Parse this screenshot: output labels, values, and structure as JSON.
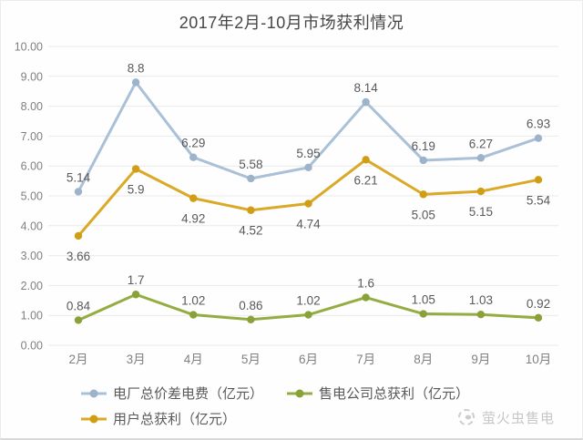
{
  "chart_data": {
    "type": "line",
    "title": "2017年2月-10月市场获利情况",
    "categories": [
      "2月",
      "3月",
      "4月",
      "5月",
      "6月",
      "7月",
      "8月",
      "9月",
      "10月"
    ],
    "series": [
      {
        "name": "电厂总价差电费（亿元）",
        "color": "#a9c0d6",
        "marker_color": "#9cb3ca",
        "values": [
          5.14,
          8.8,
          6.29,
          5.58,
          5.95,
          8.14,
          6.19,
          6.27,
          6.93
        ],
        "label_side": "above"
      },
      {
        "name": "售电公司总获利（亿元）",
        "color": "#94ad43",
        "marker_color": "#89a238",
        "values": [
          0.84,
          1.7,
          1.02,
          0.86,
          1.02,
          1.6,
          1.05,
          1.03,
          0.92
        ],
        "label_side": "above"
      },
      {
        "name": "用户总获利（亿元）",
        "color": "#dba928",
        "marker_color": "#cf9e14",
        "values": [
          3.66,
          5.9,
          4.92,
          4.52,
          4.74,
          6.21,
          5.05,
          5.15,
          5.54
        ],
        "label_side": "below"
      }
    ],
    "y_tick_labels": [
      "10.00",
      "9.00",
      "8.00",
      "7.00",
      "6.00",
      "5.00",
      "4.00",
      "3.00",
      "2.00",
      "1.00",
      "0.00"
    ],
    "ylim": [
      0,
      10
    ],
    "grid": true,
    "legend_position": "bottom-left",
    "grid_color": "#e9e9e9",
    "axis_label_color": "#808080",
    "data_label_color": "#595959"
  },
  "logo": {
    "text": "萤火虫售电"
  }
}
